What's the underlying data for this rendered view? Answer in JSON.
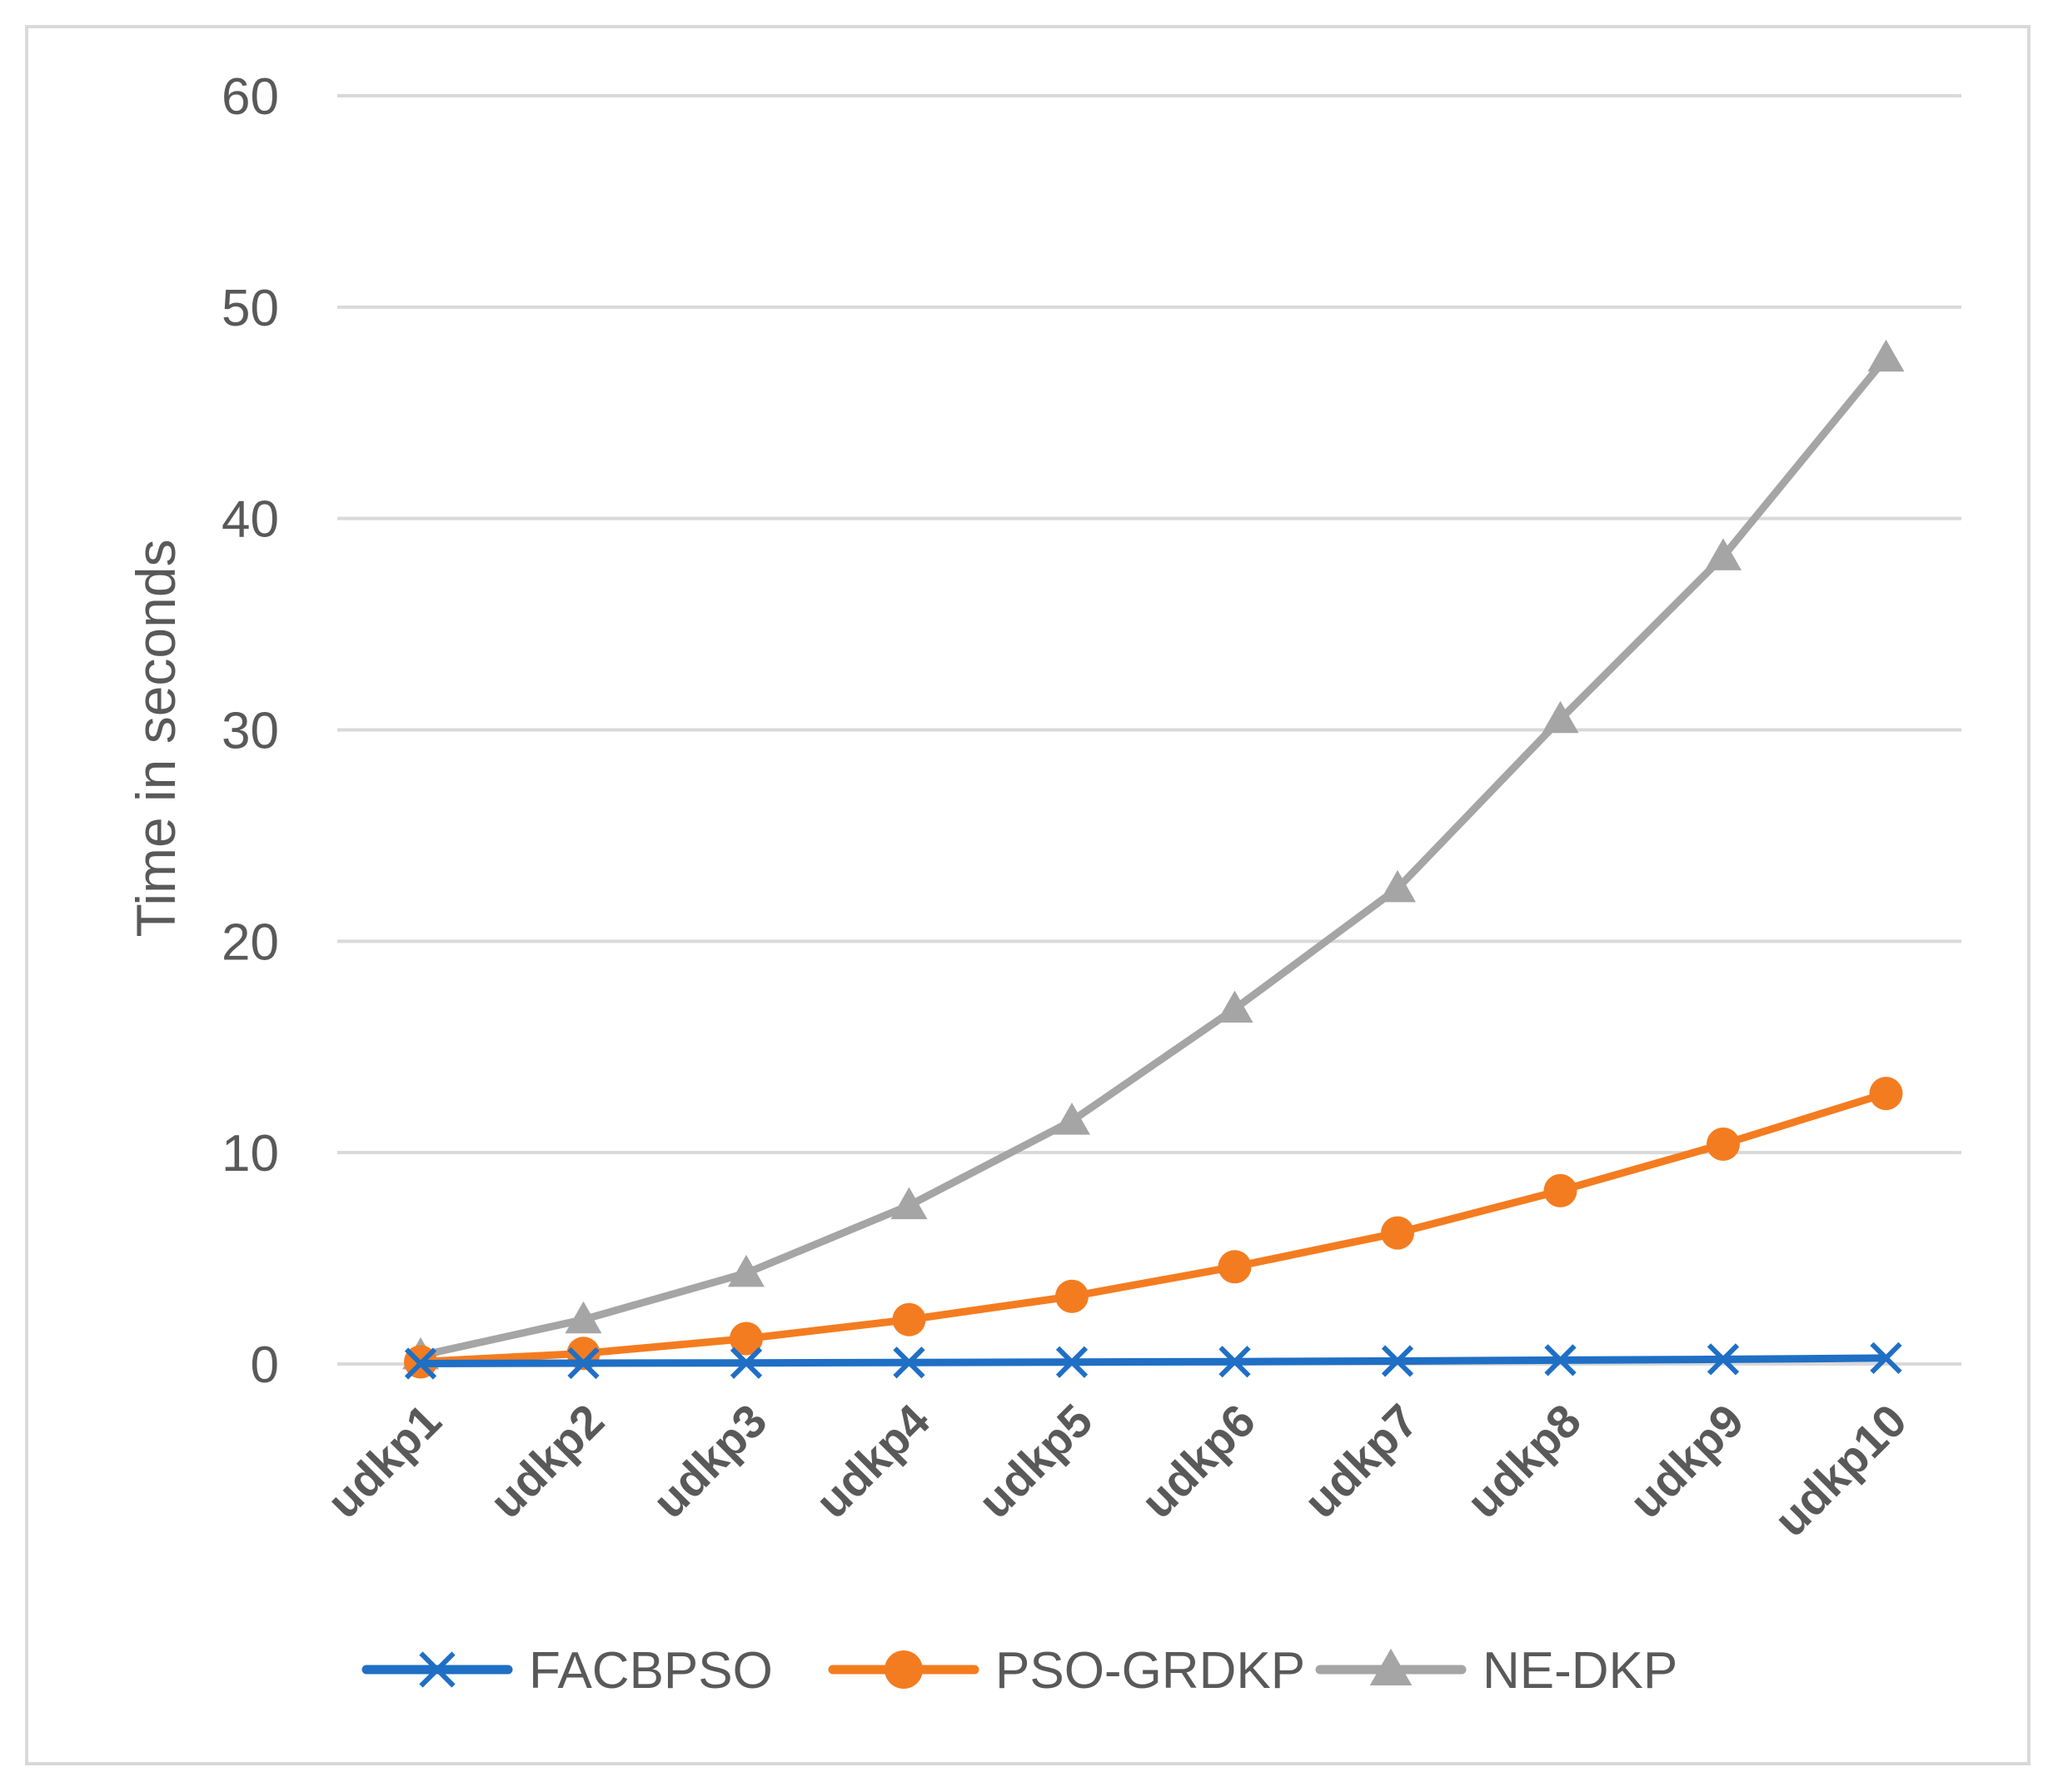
{
  "chart_data": {
    "type": "line",
    "title": "",
    "xlabel": "",
    "ylabel": "Time in seconds",
    "ylim": [
      0,
      60
    ],
    "yticks": [
      0,
      10,
      20,
      30,
      40,
      50,
      60
    ],
    "grid": true,
    "legend_position": "bottom",
    "categories": [
      "udkp1",
      "udkp2",
      "udkp3",
      "udkp4",
      "udkp5",
      "udkp6",
      "udkp7",
      "udkp8",
      "udkp9",
      "udkp10"
    ],
    "series": [
      {
        "name": "FACBPSO",
        "color": "#1f6fc5",
        "marker": "x",
        "values": [
          0.02,
          0.04,
          0.05,
          0.07,
          0.09,
          0.11,
          0.14,
          0.18,
          0.22,
          0.28
        ]
      },
      {
        "name": "PSO-GRDKP",
        "color": "#f47c20",
        "marker": "circle",
        "values": [
          0.1,
          0.5,
          1.2,
          2.1,
          3.2,
          4.6,
          6.2,
          8.2,
          10.4,
          12.8
        ]
      },
      {
        "name": "NE-DKP",
        "color": "#a5a5a5",
        "marker": "triangle",
        "values": [
          0.4,
          2.1,
          4.3,
          7.5,
          11.5,
          16.8,
          22.5,
          30.5,
          38.2,
          47.6
        ]
      }
    ]
  }
}
